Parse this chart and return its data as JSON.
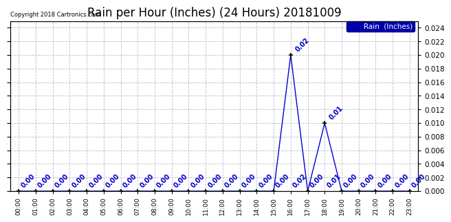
{
  "title": "Rain per Hour (Inches) (24 Hours) 20181009",
  "copyright": "Copyright 2018 Cartronics.com",
  "legend_label": "Rain  (Inches)",
  "hours": [
    0,
    1,
    2,
    3,
    4,
    5,
    6,
    7,
    8,
    9,
    10,
    11,
    12,
    13,
    14,
    15,
    16,
    17,
    18,
    19,
    20,
    21,
    22,
    23
  ],
  "values": [
    0.0,
    0.0,
    0.0,
    0.0,
    0.0,
    0.0,
    0.0,
    0.0,
    0.0,
    0.0,
    0.0,
    0.0,
    0.0,
    0.0,
    0.0,
    0.0,
    0.02,
    0.0,
    0.01,
    0.0,
    0.0,
    0.0,
    0.0,
    0.0
  ],
  "line_color": "#0000cc",
  "marker": "+",
  "marker_size": 5,
  "marker_color": "#000000",
  "background_color": "#ffffff",
  "plot_bg_color": "#ffffff",
  "grid_color": "#bbbbcc",
  "ylim": [
    0,
    0.025
  ],
  "ytick_values": [
    0.0,
    0.002,
    0.004,
    0.006,
    0.008,
    0.01,
    0.012,
    0.014,
    0.016,
    0.018,
    0.02,
    0.022,
    0.024
  ],
  "title_fontsize": 12,
  "annotation_color": "#0000cc",
  "annotation_fontsize": 7,
  "legend_bg_color": "#0000aa",
  "legend_text_color": "#ffffff",
  "xlabel_fontsize": 7,
  "ylabel_fontsize": 7.5
}
